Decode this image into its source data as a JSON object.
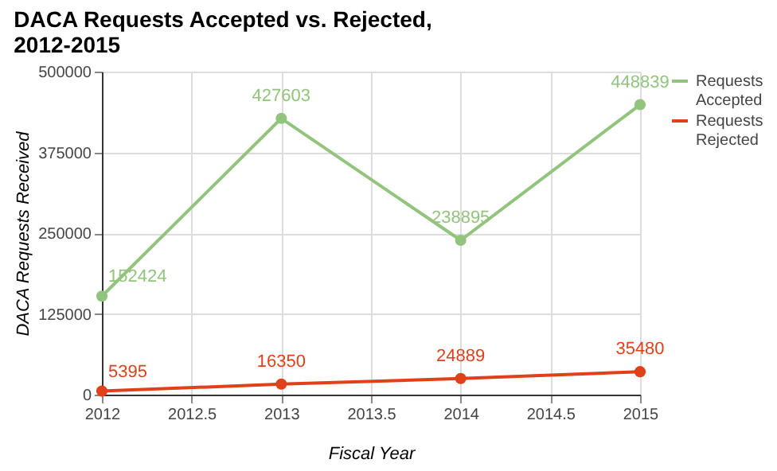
{
  "chart_data": {
    "type": "line",
    "title": "DACA Requests Accepted vs. Rejected,\n2012-2015",
    "xlabel": "Fiscal Year",
    "ylabel": "DACA Requests Received",
    "x": [
      2012,
      2013,
      2014,
      2015
    ],
    "series": [
      {
        "name": "Requests Accepted",
        "color": "#93c47d",
        "values": [
          152424,
          427603,
          238895,
          448839
        ]
      },
      {
        "name": "Requests Rejected",
        "color": "#e0401a",
        "values": [
          5395,
          16350,
          24889,
          35480
        ]
      }
    ],
    "xlim": [
      2012,
      2015
    ],
    "xticks": [
      2012,
      2012.5,
      2013,
      2013.5,
      2014,
      2014.5,
      2015
    ],
    "ylim": [
      0,
      500000
    ],
    "yticks": [
      0,
      125000,
      250000,
      375000,
      500000
    ],
    "grid": true,
    "legend": "right",
    "marker": "circle",
    "line_style": "solid",
    "data_labels": true
  }
}
